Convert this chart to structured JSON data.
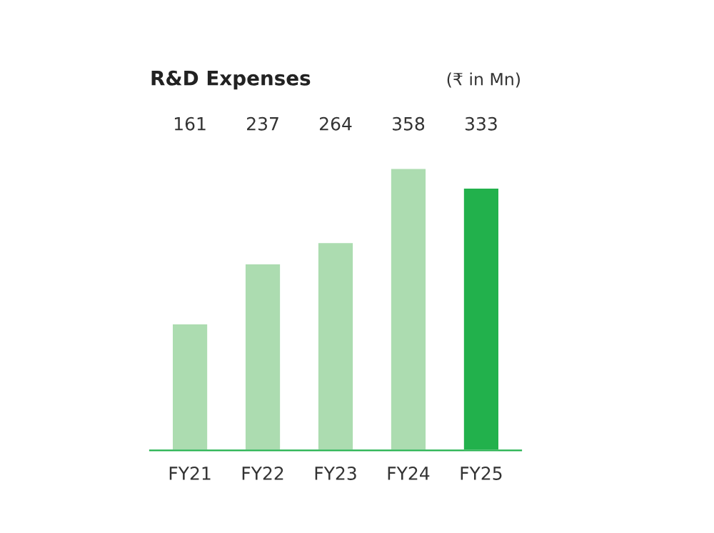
{
  "chart_data": {
    "type": "bar",
    "title": "R&D Expenses",
    "subtitle": "(₹ in Mn)",
    "categories": [
      "FY21",
      "FY22",
      "FY23",
      "FY24",
      "FY25"
    ],
    "values": [
      161,
      237,
      264,
      358,
      333
    ],
    "colors": [
      "#acdcb0",
      "#acdcb0",
      "#acdcb0",
      "#acdcb0",
      "#22b14c"
    ],
    "data_labels": true,
    "grid": false,
    "legend": false
  }
}
